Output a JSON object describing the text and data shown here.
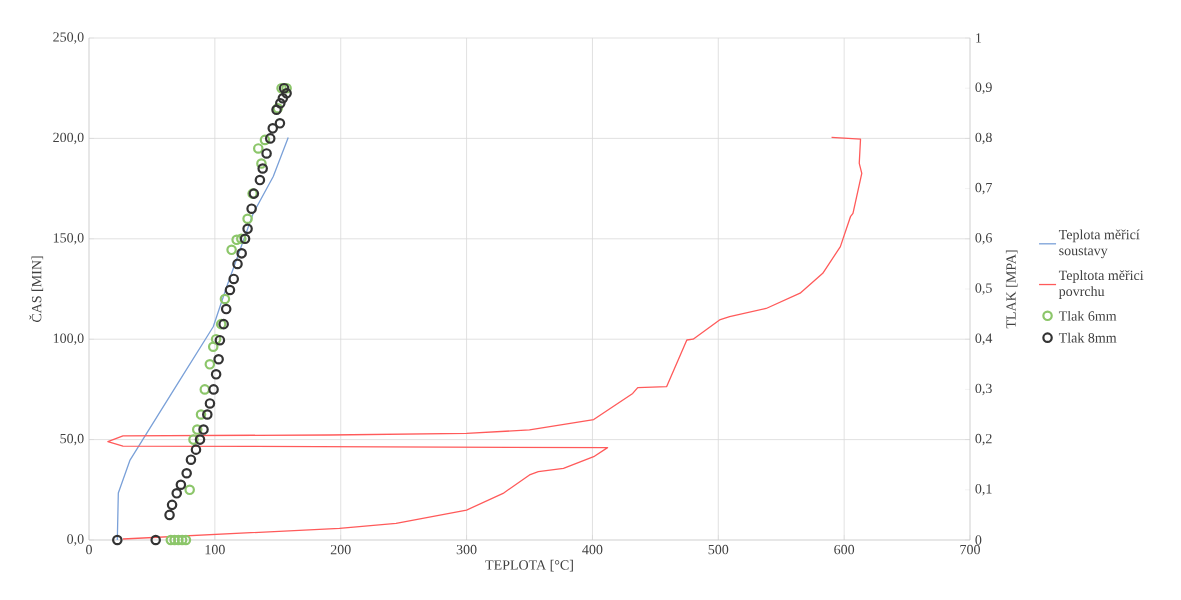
{
  "chart_data": {
    "type": "line",
    "xlabel": "TEPLOTA [°C]",
    "ylabel": "ČAS [MIN]",
    "y2label": "TLAK [MPA]",
    "xlim": [
      0,
      700
    ],
    "xticks": [
      0,
      100,
      200,
      300,
      400,
      500,
      600,
      700
    ],
    "ylim": [
      0,
      250
    ],
    "yticks": [
      {
        "value": 0,
        "label": "0,0"
      },
      {
        "value": 50,
        "label": "50,0"
      },
      {
        "value": 100,
        "label": "100,0"
      },
      {
        "value": 150,
        "label": "150,0"
      },
      {
        "value": 200,
        "label": "200,0"
      },
      {
        "value": 250,
        "label": "250,0"
      }
    ],
    "y2lim": [
      0,
      1
    ],
    "y2ticks": [
      0,
      {
        "value": 0.1,
        "label": "0,1"
      },
      {
        "value": 0.2,
        "label": "0,2"
      },
      {
        "value": 0.3,
        "label": "0,3"
      },
      {
        "value": 0.4,
        "label": "0,4"
      },
      {
        "value": 0.5,
        "label": "0,5"
      },
      {
        "value": 0.6,
        "label": "0,6"
      },
      {
        "value": 0.7,
        "label": "0,7"
      },
      {
        "value": 0.8,
        "label": "0,8"
      },
      {
        "value": 0.9,
        "label": "0,9"
      },
      1
    ],
    "grid": true,
    "legend": "right",
    "series": [
      {
        "name": "Teplota měřicí soustavy",
        "color": "#7aa0d8",
        "x": [
          22.5,
          23.3,
          32.6,
          45.8,
          72.3,
          98.7,
          109.4,
          130.5,
          146.4,
          158.3
        ],
        "values": [
          0,
          23.4,
          39.8,
          53.1,
          79.7,
          106.2,
          126.1,
          162.7,
          181,
          200.5
        ]
      },
      {
        "name": "Tepltota měřici povrchu",
        "color": "#ff5a5a",
        "x": [
          27,
          199,
          244,
          300,
          329,
          350,
          357,
          377,
          401,
          412,
          27,
          15,
          27,
          191,
          300,
          350,
          401,
          432,
          436,
          459,
          475,
          480,
          501,
          509,
          538,
          565,
          583,
          597,
          605,
          607,
          614,
          612,
          613,
          590
        ],
        "values": [
          0.5,
          5.8,
          8.3,
          14.9,
          23.2,
          32.4,
          34,
          35.7,
          41.5,
          46,
          46.8,
          49,
          51.9,
          52.3,
          53.1,
          54.8,
          60,
          73,
          75.9,
          76.4,
          99.6,
          100,
          109.6,
          111.2,
          115.3,
          122.9,
          132.8,
          146.1,
          161,
          162.7,
          182.6,
          187.6,
          199.6,
          200.5
        ]
      },
      {
        "name": "Tlak 6mm",
        "type": "scatter",
        "marker": "circle",
        "axis": "y2",
        "color": "#8cc66a",
        "x": [
          65,
          68,
          71,
          74,
          77,
          80,
          83,
          86,
          89,
          92,
          96,
          98.7,
          101,
          105,
          108,
          113.3,
          117.3,
          121,
          126,
          130,
          134.5,
          137,
          139.8,
          145,
          150,
          153,
          157
        ],
        "values": [
          0,
          0,
          0,
          0,
          0,
          0.1,
          0.2,
          0.22,
          0.25,
          0.3,
          0.35,
          0.385,
          0.4,
          0.43,
          0.48,
          0.578,
          0.598,
          0.6,
          0.64,
          0.69,
          0.78,
          0.75,
          0.797,
          null,
          0.86,
          0.9,
          0.9
        ]
      },
      {
        "name": "Tlak 8mm",
        "type": "scatter",
        "marker": "circle",
        "axis": "y2",
        "color": "#333333",
        "x": [
          22.5,
          53,
          64,
          66,
          69.7,
          73,
          77.6,
          81,
          85,
          88.2,
          91,
          94,
          96.1,
          99,
          101,
          103,
          104,
          107,
          109,
          112,
          115,
          118,
          121.3,
          124,
          126,
          129.2,
          131,
          135.8,
          138,
          141.1,
          144,
          146,
          149,
          151.7,
          152,
          154,
          157,
          155
        ],
        "values": [
          0,
          0,
          0.05,
          0.07,
          0.093,
          0.11,
          0.133,
          0.16,
          0.18,
          0.2,
          0.22,
          0.25,
          0.272,
          0.3,
          0.33,
          0.36,
          0.398,
          0.43,
          0.46,
          0.498,
          0.52,
          0.55,
          0.571,
          0.6,
          0.62,
          0.66,
          0.69,
          0.717,
          0.74,
          0.77,
          0.8,
          0.82,
          0.857,
          0.83,
          0.87,
          0.88,
          0.89,
          0.9
        ]
      }
    ]
  }
}
